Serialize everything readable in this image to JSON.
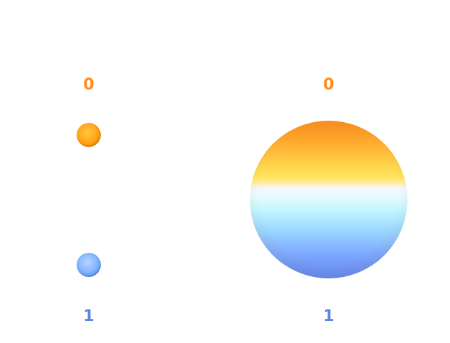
{
  "states": {
    "zero_label": "0",
    "one_label": "1"
  },
  "colors": {
    "zero_color": "#ff8c1a",
    "one_color": "#5b86e8"
  }
}
